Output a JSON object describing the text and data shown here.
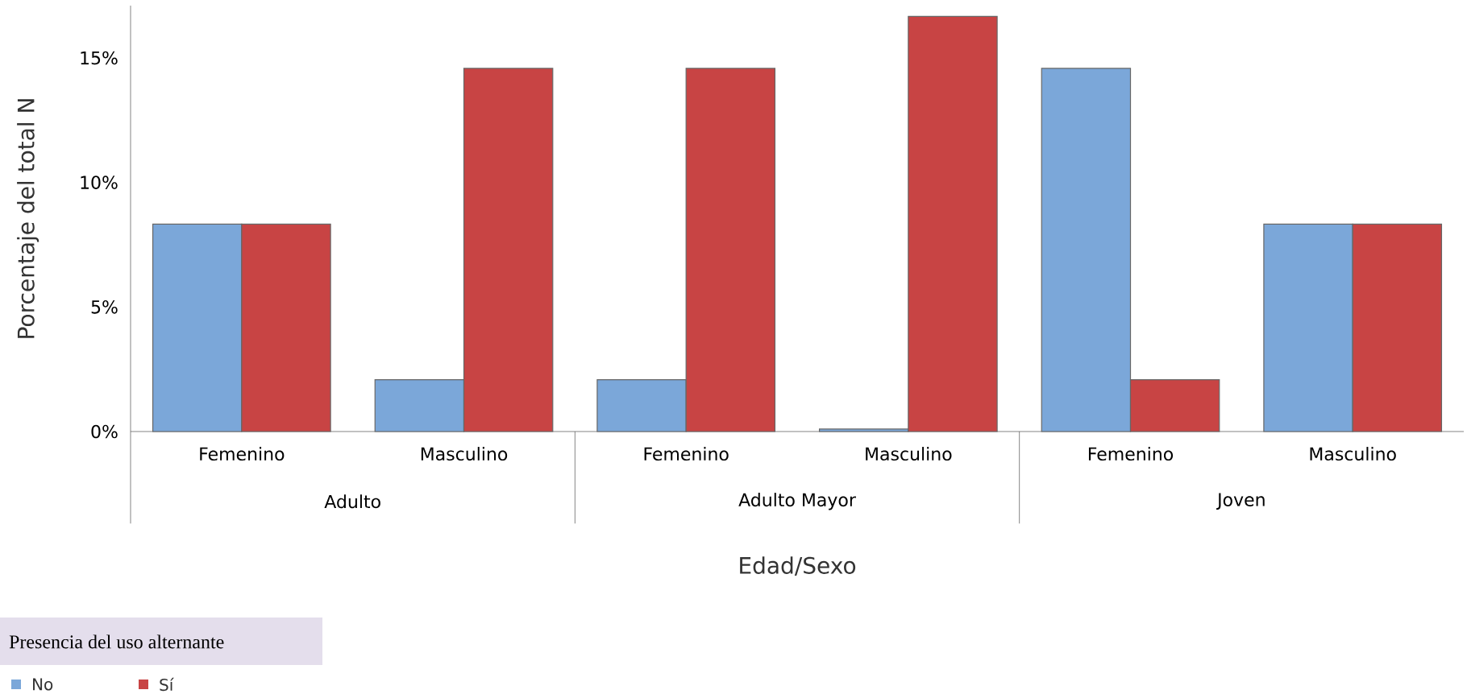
{
  "chart_data": {
    "type": "bar",
    "xlabel": "Edad/Sexo",
    "ylabel": "Porcentaje del total N",
    "legend_title": "Presencia del uso alternante",
    "legend": "bottom left",
    "categories": [
      "Femenino",
      "Masculino",
      "Femenino",
      "Masculino",
      "Femenino",
      "Masculino"
    ],
    "annotations": [
      "Adulto",
      "Adulto Mayor",
      "Joven"
    ],
    "series": [
      {
        "name": "No",
        "color": "#7ba7d9",
        "values": [
          8.33,
          2.08,
          2.08,
          0.1,
          14.58,
          8.33
        ]
      },
      {
        "name": "Sí",
        "color": "#c84444",
        "values": [
          8.33,
          14.58,
          14.58,
          16.67,
          2.08,
          8.33
        ]
      }
    ],
    "ylim": [
      0,
      17.1
    ],
    "yticks": [
      {
        "value": 0,
        "label": "0%"
      },
      {
        "value": 5,
        "label": "5%"
      },
      {
        "value": 10,
        "label": "10%"
      },
      {
        "value": 15,
        "label": "15%"
      }
    ],
    "grid": false
  }
}
